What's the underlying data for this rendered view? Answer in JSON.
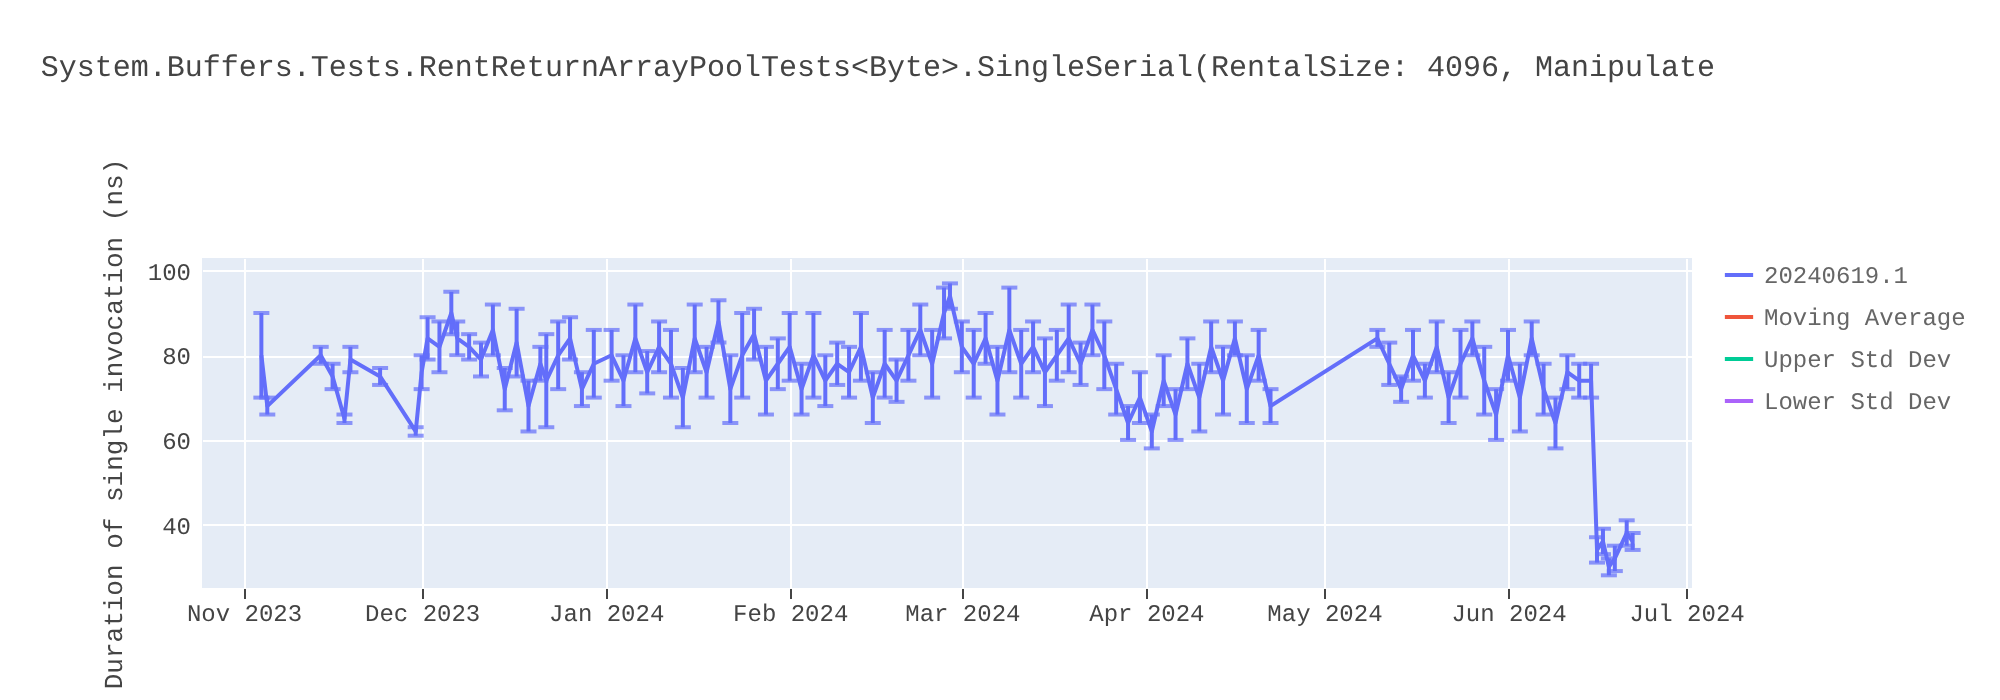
{
  "chart_data": {
    "type": "line",
    "title": "System.Buffers.Tests.RentReturnArrayPoolTests<Byte>.SingleSerial(RentalSize: 4096, Manipulate",
    "ylabel": "Duration of single invocation (ns)",
    "x": [
      "2023-11-04",
      "2023-11-05",
      "2023-11-14",
      "2023-11-16",
      "2023-11-18",
      "2023-11-19",
      "2023-11-24",
      "2023-11-30",
      "2023-12-01",
      "2023-12-02",
      "2023-12-04",
      "2023-12-06",
      "2023-12-07",
      "2023-12-09",
      "2023-12-11",
      "2023-12-13",
      "2023-12-15",
      "2023-12-17",
      "2023-12-19",
      "2023-12-21",
      "2023-12-22",
      "2023-12-24",
      "2023-12-26",
      "2023-12-28",
      "2023-12-30",
      "2024-01-02",
      "2024-01-04",
      "2024-01-06",
      "2024-01-08",
      "2024-01-10",
      "2024-01-12",
      "2024-01-14",
      "2024-01-16",
      "2024-01-18",
      "2024-01-20",
      "2024-01-22",
      "2024-01-24",
      "2024-01-26",
      "2024-01-28",
      "2024-01-30",
      "2024-02-01",
      "2024-02-03",
      "2024-02-05",
      "2024-02-07",
      "2024-02-09",
      "2024-02-11",
      "2024-02-13",
      "2024-02-15",
      "2024-02-17",
      "2024-02-19",
      "2024-02-21",
      "2024-02-23",
      "2024-02-25",
      "2024-02-27",
      "2024-02-28",
      "2024-03-01",
      "2024-03-03",
      "2024-03-05",
      "2024-03-07",
      "2024-03-09",
      "2024-03-11",
      "2024-03-13",
      "2024-03-15",
      "2024-03-17",
      "2024-03-19",
      "2024-03-21",
      "2024-03-23",
      "2024-03-25",
      "2024-03-27",
      "2024-03-29",
      "2024-03-31",
      "2024-04-02",
      "2024-04-04",
      "2024-04-06",
      "2024-04-08",
      "2024-04-10",
      "2024-04-12",
      "2024-04-14",
      "2024-04-16",
      "2024-04-18",
      "2024-04-20",
      "2024-04-22",
      "2024-05-10",
      "2024-05-12",
      "2024-05-14",
      "2024-05-16",
      "2024-05-18",
      "2024-05-20",
      "2024-05-22",
      "2024-05-24",
      "2024-05-26",
      "2024-05-28",
      "2024-05-30",
      "2024-06-01",
      "2024-06-03",
      "2024-06-05",
      "2024-06-07",
      "2024-06-09",
      "2024-06-11",
      "2024-06-13",
      "2024-06-15",
      "2024-06-16",
      "2024-06-17",
      "2024-06-18",
      "2024-06-19",
      "2024-06-21",
      "2024-06-22"
    ],
    "series": [
      {
        "name": "20240619.1",
        "color": "#636efa",
        "values": [
          80,
          68,
          80,
          75,
          65,
          79,
          75,
          62,
          76,
          84,
          82,
          90,
          84,
          82,
          79,
          86,
          72,
          83,
          68,
          78,
          74,
          80,
          84,
          72,
          78,
          80,
          74,
          84,
          76,
          82,
          78,
          70,
          84,
          76,
          88,
          72,
          80,
          85,
          74,
          78,
          82,
          72,
          80,
          74,
          78,
          76,
          82,
          70,
          78,
          74,
          80,
          86,
          78,
          90,
          94,
          82,
          78,
          84,
          74,
          86,
          78,
          82,
          76,
          80,
          84,
          78,
          86,
          80,
          72,
          64,
          70,
          62,
          74,
          66,
          78,
          70,
          82,
          74,
          84,
          72,
          80,
          68,
          84,
          78,
          72,
          80,
          74,
          82,
          70,
          78,
          84,
          74,
          66,
          80,
          70,
          84,
          72,
          64,
          76,
          74,
          74,
          34,
          36,
          30,
          32,
          38,
          36
        ],
        "errors": [
          10,
          2,
          2,
          3,
          1,
          3,
          2,
          1,
          4,
          5,
          6,
          5,
          4,
          3,
          4,
          6,
          5,
          8,
          6,
          4,
          11,
          8,
          5,
          4,
          8,
          6,
          6,
          8,
          5,
          6,
          8,
          7,
          8,
          6,
          5,
          8,
          10,
          6,
          8,
          6,
          8,
          6,
          10,
          6,
          5,
          6,
          8,
          6,
          8,
          5,
          6,
          6,
          8,
          6,
          3,
          6,
          8,
          6,
          8,
          10,
          8,
          6,
          8,
          6,
          8,
          5,
          6,
          8,
          6,
          4,
          6,
          4,
          6,
          6,
          6,
          8,
          6,
          8,
          4,
          8,
          6,
          4,
          2,
          5,
          3,
          6,
          4,
          6,
          6,
          8,
          4,
          8,
          6,
          6,
          8,
          4,
          6,
          6,
          4,
          4,
          4,
          3,
          3,
          2,
          3,
          3,
          2
        ]
      },
      {
        "name": "Moving Average",
        "color": "#ef553b",
        "values": [
          null,
          null,
          null,
          null,
          null,
          null,
          null,
          null,
          null,
          null,
          null,
          null,
          null,
          null,
          null,
          null,
          null,
          null,
          null,
          null,
          null,
          null,
          null,
          null,
          null,
          null,
          null,
          null,
          null,
          null,
          null,
          null,
          null,
          null,
          null,
          null,
          null,
          null,
          null,
          null,
          null,
          null,
          null,
          null,
          null,
          null,
          null,
          null,
          null,
          null,
          null,
          null,
          null,
          null,
          null,
          null,
          null,
          null,
          null,
          null,
          null,
          null,
          null,
          null,
          null,
          null,
          null,
          null,
          null,
          null,
          null,
          null,
          null,
          null,
          null,
          null,
          null,
          null,
          null,
          null,
          null,
          null,
          null,
          null,
          null,
          null,
          null,
          null,
          null,
          null,
          null,
          null,
          null,
          null,
          null,
          null,
          null,
          null,
          null,
          null,
          null,
          null,
          null,
          null,
          null,
          null,
          null
        ]
      },
      {
        "name": "Upper Std Dev",
        "color": "#00cc96",
        "values": [
          null,
          null,
          null,
          null,
          null,
          null,
          null,
          null,
          null,
          null,
          null,
          null,
          null,
          null,
          null,
          null,
          null,
          null,
          null,
          null,
          null,
          null,
          null,
          null,
          null,
          null,
          null,
          null,
          null,
          null,
          null,
          null,
          null,
          null,
          null,
          null,
          null,
          null,
          null,
          null,
          null,
          null,
          null,
          null,
          null,
          null,
          null,
          null,
          null,
          null,
          null,
          null,
          null,
          null,
          null,
          null,
          null,
          null,
          null,
          null,
          null,
          null,
          null,
          null,
          null,
          null,
          null,
          null,
          null,
          null,
          null,
          null,
          null,
          null,
          null,
          null,
          null,
          null,
          null,
          null,
          null,
          null,
          null,
          null,
          null,
          null,
          null,
          null,
          null,
          null,
          null,
          null,
          null,
          null,
          null,
          null,
          null,
          null,
          null,
          null,
          null,
          null,
          null,
          null,
          null,
          null,
          null
        ]
      },
      {
        "name": "Lower Std Dev",
        "color": "#ab63fa",
        "values": [
          null,
          null,
          null,
          null,
          null,
          null,
          null,
          null,
          null,
          null,
          null,
          null,
          null,
          null,
          null,
          null,
          null,
          null,
          null,
          null,
          null,
          null,
          null,
          null,
          null,
          null,
          null,
          null,
          null,
          null,
          null,
          null,
          null,
          null,
          null,
          null,
          null,
          null,
          null,
          null,
          null,
          null,
          null,
          null,
          null,
          null,
          null,
          null,
          null,
          null,
          null,
          null,
          null,
          null,
          null,
          null,
          null,
          null,
          null,
          null,
          null,
          null,
          null,
          null,
          null,
          null,
          null,
          null,
          null,
          null,
          null,
          null,
          null,
          null,
          null,
          null,
          null,
          null,
          null,
          null,
          null,
          null,
          null,
          null,
          null,
          null,
          null,
          null,
          null,
          null,
          null,
          null,
          null,
          null,
          null,
          null,
          null,
          null,
          null,
          null,
          null,
          null,
          null,
          null,
          null,
          null,
          null
        ]
      }
    ],
    "xlim": [
      "2023-10-25",
      "2024-07-02"
    ],
    "xticks": [
      {
        "value": "2023-11-01",
        "label": "Nov 2023"
      },
      {
        "value": "2023-12-01",
        "label": "Dec 2023"
      },
      {
        "value": "2024-01-01",
        "label": "Jan 2024"
      },
      {
        "value": "2024-02-01",
        "label": "Feb 2024"
      },
      {
        "value": "2024-03-01",
        "label": "Mar 2024"
      },
      {
        "value": "2024-04-01",
        "label": "Apr 2024"
      },
      {
        "value": "2024-05-01",
        "label": "May 2024"
      },
      {
        "value": "2024-06-01",
        "label": "Jun 2024"
      },
      {
        "value": "2024-07-01",
        "label": "Jul 2024"
      }
    ],
    "ylim": [
      25,
      103
    ],
    "yticks": [
      40,
      60,
      80,
      100
    ],
    "grid": true,
    "legend": "top right"
  }
}
